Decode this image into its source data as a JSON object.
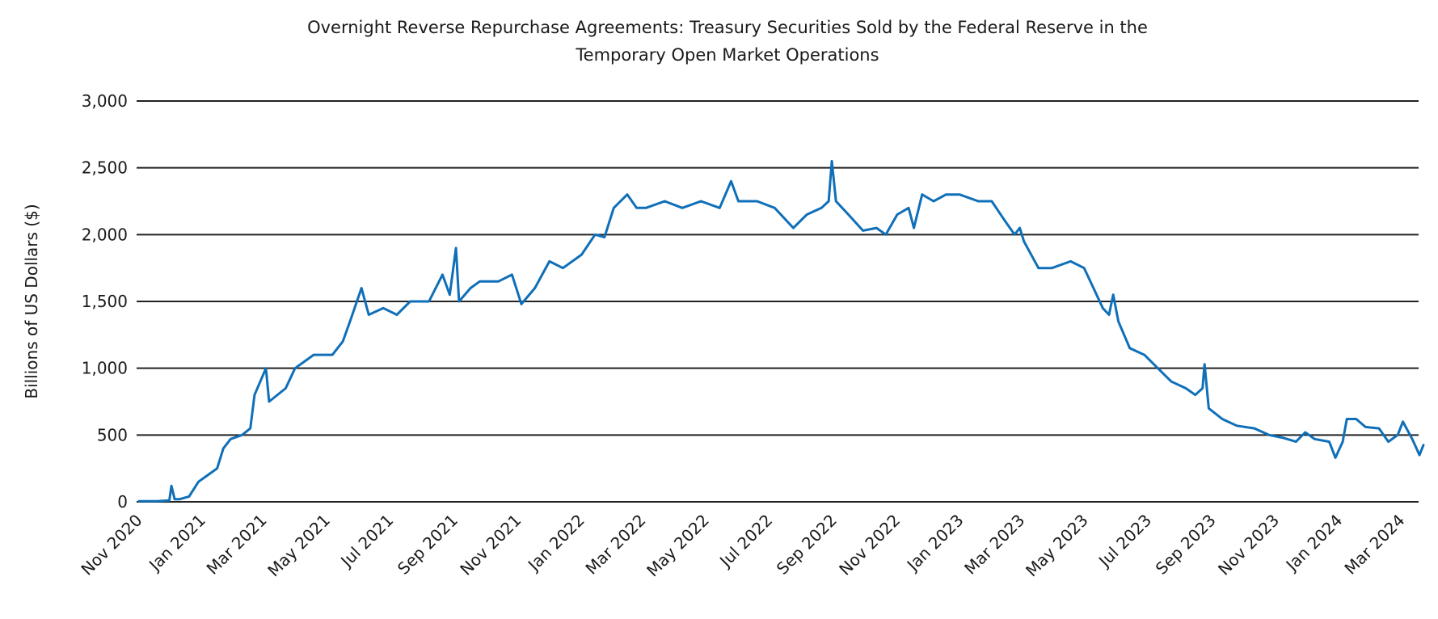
{
  "chart_data": {
    "type": "line",
    "title": [
      "Overnight Reverse Repurchase Agreements: Treasury Securities Sold by the Federal Reserve in  the",
      "Temporary Open Market Operations"
    ],
    "xlabel": "",
    "ylabel": "Billions  of US Dollars ($)",
    "ylim": [
      0,
      3000
    ],
    "yticks": [
      0,
      500,
      1000,
      1500,
      2000,
      2500,
      3000
    ],
    "ytick_labels": [
      "0",
      "500",
      "1,000",
      "1,500",
      "2,000",
      "2,500",
      "3,000"
    ],
    "xticks": [
      "2020-11-01",
      "2021-01-01",
      "2021-03-01",
      "2021-05-01",
      "2021-07-01",
      "2021-09-01",
      "2021-11-01",
      "2022-01-01",
      "2022-03-01",
      "2022-05-01",
      "2022-07-01",
      "2022-09-01",
      "2022-11-01",
      "2023-01-01",
      "2023-03-01",
      "2023-05-01",
      "2023-07-01",
      "2023-09-01",
      "2023-11-01",
      "2024-01-01",
      "2024-03-01"
    ],
    "xtick_labels": [
      "Nov 2020",
      "Jan 2021",
      "Mar 2021",
      "May 2021",
      "Jul 2021",
      "Sep 2021",
      "Nov 2021",
      "Jan 2022",
      "Mar 2022",
      "May 2022",
      "Jul 2022",
      "Sep 2022",
      "Nov 2022",
      "Jan 2023",
      "Mar 2023",
      "May 2023",
      "Jul 2023",
      "Sep 2023",
      "Nov 2023",
      "Jan 2024",
      "Mar 2024"
    ],
    "grid": "horizontal",
    "line_color": "#0f6fb8",
    "series": [
      {
        "x": [
          "2020-11-01",
          "2020-11-19",
          "2020-12-01",
          "2020-12-03",
          "2020-12-06",
          "2020-12-11",
          "2020-12-20",
          "2020-12-29",
          "2021-01-07",
          "2021-01-16",
          "2021-01-22",
          "2021-01-29",
          "2021-02-09",
          "2021-02-17",
          "2021-02-21",
          "2021-03-04",
          "2021-03-07",
          "2021-03-23",
          "2021-04-01",
          "2021-04-19",
          "2021-05-07",
          "2021-05-17",
          "2021-05-24",
          "2021-06-04",
          "2021-06-11",
          "2021-06-25",
          "2021-07-08",
          "2021-07-21",
          "2021-08-08",
          "2021-08-21",
          "2021-08-28",
          "2021-09-03",
          "2021-09-06",
          "2021-09-17",
          "2021-09-26",
          "2021-10-14",
          "2021-10-27",
          "2021-11-05",
          "2021-11-18",
          "2021-12-02",
          "2021-12-15",
          "2022-01-02",
          "2022-01-15",
          "2022-01-24",
          "2022-02-02",
          "2022-02-15",
          "2022-02-24",
          "2022-03-05",
          "2022-03-23",
          "2022-04-09",
          "2022-04-27",
          "2022-05-15",
          "2022-05-26",
          "2022-06-02",
          "2022-06-20",
          "2022-07-07",
          "2022-07-25",
          "2022-08-07",
          "2022-08-21",
          "2022-08-28",
          "2022-08-31",
          "2022-09-04",
          "2022-09-16",
          "2022-09-30",
          "2022-10-13",
          "2022-10-22",
          "2022-11-02",
          "2022-11-13",
          "2022-11-18",
          "2022-11-26",
          "2022-12-07",
          "2022-12-19",
          "2023-01-01",
          "2023-01-19",
          "2023-02-01",
          "2023-02-14",
          "2023-02-23",
          "2023-02-28",
          "2023-03-04",
          "2023-03-18",
          "2023-03-31",
          "2023-04-18",
          "2023-05-01",
          "2023-05-10",
          "2023-05-19",
          "2023-05-25",
          "2023-05-29",
          "2023-06-03",
          "2023-06-14",
          "2023-06-28",
          "2023-07-11",
          "2023-07-24",
          "2023-08-07",
          "2023-08-16",
          "2023-08-23",
          "2023-08-25",
          "2023-08-29",
          "2023-09-11",
          "2023-09-25",
          "2023-10-12",
          "2023-10-26",
          "2023-11-08",
          "2023-11-21",
          "2023-11-30",
          "2023-12-09",
          "2023-12-23",
          "2023-12-29",
          "2024-01-05",
          "2024-01-09",
          "2024-01-18",
          "2024-01-27",
          "2024-02-09",
          "2024-02-18",
          "2024-02-27",
          "2024-03-03",
          "2024-03-12",
          "2024-03-19",
          "2024-03-23"
        ],
        "values": [
          5,
          5,
          10,
          120,
          20,
          20,
          40,
          150,
          200,
          250,
          400,
          470,
          500,
          550,
          800,
          1000,
          750,
          850,
          1000,
          1100,
          1100,
          1200,
          1350,
          1600,
          1400,
          1450,
          1400,
          1500,
          1500,
          1700,
          1550,
          1900,
          1500,
          1600,
          1650,
          1650,
          1700,
          1480,
          1600,
          1800,
          1750,
          1850,
          2000,
          1980,
          2200,
          2300,
          2200,
          2200,
          2250,
          2200,
          2250,
          2200,
          2400,
          2250,
          2250,
          2200,
          2050,
          2150,
          2200,
          2250,
          2550,
          2250,
          2150,
          2030,
          2050,
          2000,
          2150,
          2200,
          2050,
          2300,
          2250,
          2300,
          2300,
          2250,
          2250,
          2100,
          2000,
          2050,
          1950,
          1750,
          1750,
          1800,
          1750,
          1600,
          1450,
          1400,
          1550,
          1350,
          1150,
          1100,
          1000,
          900,
          850,
          800,
          850,
          1030,
          700,
          620,
          570,
          550,
          500,
          480,
          450,
          520,
          470,
          450,
          330,
          450,
          620,
          620,
          560,
          550,
          450,
          500,
          600,
          470,
          350,
          430
        ]
      }
    ]
  }
}
